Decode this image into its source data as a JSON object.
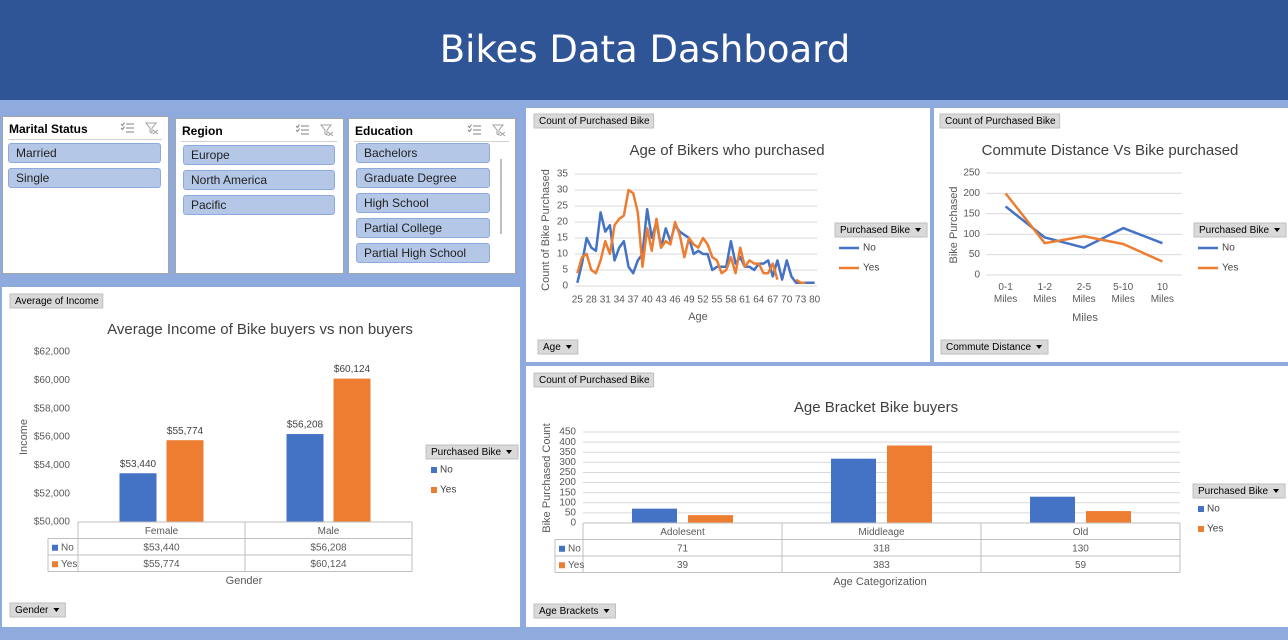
{
  "title": "Bikes Data Dashboard",
  "slicers": [
    {
      "title": "Marital Status",
      "items": [
        "Married",
        "Single"
      ]
    },
    {
      "title": "Region",
      "items": [
        "Europe",
        "North America",
        "Pacific"
      ]
    },
    {
      "title": "Education",
      "items": [
        "Bachelors",
        "Graduate Degree",
        "High School",
        "Partial College",
        "Partial High School"
      ]
    }
  ],
  "chart_data": [
    {
      "type": "bar",
      "title": "Average Income of Bike buyers vs non buyers",
      "field_button": "Average of Income",
      "axis_button": "Gender",
      "legend_title": "Purchased Bike",
      "x_label": "Gender",
      "y_label": "Income",
      "categories": [
        "Female",
        "Male"
      ],
      "series": [
        {
          "name": "No",
          "color": "#4472c4",
          "values": [
            53440,
            56208
          ],
          "value_labels": [
            "$53,440",
            "$56,208"
          ]
        },
        {
          "name": "Yes",
          "color": "#ed7d31",
          "values": [
            55774,
            60124
          ],
          "value_labels": [
            "$55,774",
            "$60,124"
          ]
        }
      ],
      "ylim": [
        50000,
        62000
      ],
      "yticks": [
        {
          "value": 50000,
          "label": "$50,000"
        },
        {
          "value": 52000,
          "label": "$52,000"
        },
        {
          "value": 54000,
          "label": "$54,000"
        },
        {
          "value": 56000,
          "label": "$56,000"
        },
        {
          "value": 58000,
          "label": "$58,000"
        },
        {
          "value": 60000,
          "label": "$60,000"
        },
        {
          "value": 62000,
          "label": "$62,000"
        }
      ],
      "grid": false,
      "data_table": true,
      "data_labels": true
    },
    {
      "type": "line",
      "title": "Age of Bikers who purchased",
      "field_button": "Count of Purchased Bike",
      "axis_button": "Age",
      "legend_title": "Purchased Bike",
      "x_label": "Age",
      "y_label": "Count of Bike Purchased",
      "categories": [
        "25",
        null,
        null,
        "28",
        null,
        null,
        "31",
        null,
        null,
        "34",
        null,
        null,
        "37",
        null,
        null,
        "40",
        null,
        null,
        "43",
        null,
        null,
        "46",
        null,
        null,
        "49",
        null,
        null,
        "52",
        null,
        null,
        "55",
        null,
        null,
        "58",
        null,
        null,
        "61",
        null,
        null,
        "64",
        null,
        null,
        "67",
        null,
        null,
        "70",
        null,
        null,
        "73",
        null,
        null,
        "80"
      ],
      "series": [
        {
          "name": "No",
          "color": "#4472c4",
          "values": [
            1,
            7,
            15,
            12,
            11,
            23,
            17,
            19,
            8,
            12,
            14,
            6,
            4,
            8,
            10,
            24,
            15,
            20,
            12,
            18,
            14,
            19,
            17,
            16,
            15,
            10,
            11,
            10,
            10,
            5,
            6,
            6,
            6,
            14,
            7,
            9,
            6,
            6,
            5,
            7,
            7,
            8,
            3,
            8,
            2,
            8,
            3,
            1,
            1,
            1,
            1,
            1
          ]
        },
        {
          "name": "Yes",
          "color": "#ed7d31",
          "values": [
            4,
            9,
            10,
            5,
            4,
            8,
            14,
            10,
            19,
            21,
            22,
            30,
            29,
            23,
            6,
            18,
            11,
            21,
            12,
            14,
            13,
            20,
            16,
            9,
            15,
            13,
            12,
            15,
            13,
            9,
            8,
            4,
            5,
            9,
            4,
            12,
            6,
            8,
            7,
            7,
            4,
            4,
            7,
            2,
            null,
            null,
            null,
            2,
            1,
            1,
            null,
            null
          ]
        }
      ],
      "ylim": [
        0,
        35
      ],
      "yticks": [
        0,
        5,
        10,
        15,
        20,
        25,
        30,
        35
      ],
      "grid": true
    },
    {
      "type": "line",
      "title": "Commute Distance Vs Bike purchased",
      "field_button": "Count of Purchased Bike",
      "axis_button": "Commute Distance",
      "legend_title": "Purchased Bike",
      "x_label": "Miles",
      "y_label": "Bike Purchased",
      "categories": [
        "0-1 Miles",
        "1-2 Miles",
        "2-5 Miles",
        "5-10 Miles",
        "10 Miles"
      ],
      "series": [
        {
          "name": "No",
          "color": "#4472c4",
          "values": [
            168,
            92,
            67,
            115,
            78
          ]
        },
        {
          "name": "Yes",
          "color": "#ed7d31",
          "values": [
            200,
            78,
            95,
            76,
            33
          ]
        }
      ],
      "ylim": [
        0,
        250
      ],
      "yticks": [
        0,
        50,
        100,
        150,
        200,
        250
      ],
      "grid": true
    },
    {
      "type": "bar",
      "title": "Age Bracket Bike buyers",
      "field_button": "Count of Purchased Bike",
      "axis_button": "Age Brackets",
      "legend_title": "Purchased Bike",
      "x_label": "Age Categorization",
      "y_label": "Bike Purchased Count",
      "categories": [
        "Adolesent",
        "Middleage",
        "Old"
      ],
      "series": [
        {
          "name": "No",
          "color": "#4472c4",
          "values": [
            71,
            318,
            130
          ]
        },
        {
          "name": "Yes",
          "color": "#ed7d31",
          "values": [
            39,
            383,
            59
          ]
        }
      ],
      "ylim": [
        0,
        450
      ],
      "yticks": [
        0,
        50,
        100,
        150,
        200,
        250,
        300,
        350,
        400,
        450
      ],
      "grid": true,
      "data_table": true,
      "data_labels": false
    }
  ]
}
